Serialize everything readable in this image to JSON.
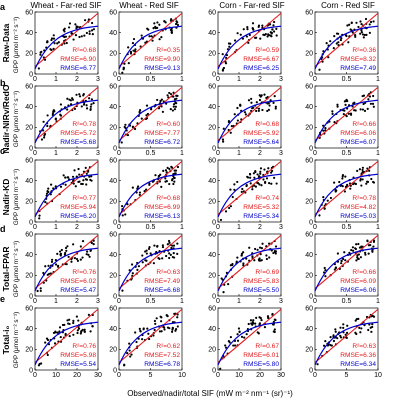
{
  "figure": {
    "xlabel": "Observed/nadir/total SIF (mW m⁻² nm⁻¹ (sr)⁻¹)",
    "ylabel": "GPP (μmol m⁻² s⁻¹)"
  },
  "colors": {
    "red_fit": "#e41a1c",
    "blue_fit": "#0000cc",
    "points": "#000000"
  },
  "columns": [
    "Wheat - Far-red SIF",
    "Wheat - Red SIF",
    "Corn - Far-red SIF",
    "Corn - Red SIF"
  ],
  "rows": [
    {
      "letter": "a",
      "label": "Raw-Data"
    },
    {
      "letter": "b",
      "label": "Nadir-NIRv/RedO"
    },
    {
      "letter": "c",
      "label": "Nadir-KD"
    },
    {
      "letter": "d",
      "label": "Total-FPAR"
    },
    {
      "letter": "e",
      "label": "Total-i₀"
    }
  ],
  "stat_labels": {
    "r2": "R²=",
    "rmse": "RMSE="
  },
  "chart_data": [
    {
      "type": "scatter",
      "row": 0,
      "col": 0,
      "xlim": [
        0,
        3
      ],
      "xticks": [
        "0",
        "1",
        "2",
        "3"
      ],
      "ylim": [
        0,
        60
      ],
      "yticks": [
        "0",
        "20",
        "40",
        "60"
      ],
      "r2": "0.68",
      "rmse_red": "6.90",
      "rmse_blue": "6.77"
    },
    {
      "type": "scatter",
      "row": 0,
      "col": 1,
      "xlim": [
        0,
        1
      ],
      "xticks": [
        "0",
        "0.5",
        "1"
      ],
      "ylim": [
        0,
        60
      ],
      "yticks": [
        "0",
        "20",
        "40",
        "60"
      ],
      "r2": "0.35",
      "rmse_red": "9.90",
      "rmse_blue": "9.13"
    },
    {
      "type": "scatter",
      "row": 0,
      "col": 2,
      "xlim": [
        0,
        3
      ],
      "xticks": [
        "0",
        "1",
        "2",
        "3"
      ],
      "ylim": [
        0,
        60
      ],
      "yticks": [
        "0",
        "20",
        "40",
        "60"
      ],
      "r2": "0.59",
      "rmse_red": "6.67",
      "rmse_blue": "6.25"
    },
    {
      "type": "scatter",
      "row": 0,
      "col": 3,
      "xlim": [
        0,
        1
      ],
      "xticks": [
        "0",
        "0.5",
        "1"
      ],
      "ylim": [
        0,
        60
      ],
      "yticks": [
        "0",
        "20",
        "40",
        "60"
      ],
      "r2": "0.36",
      "rmse_red": "8.32",
      "rmse_blue": "7.49"
    },
    {
      "type": "scatter",
      "row": 1,
      "col": 0,
      "xlim": [
        0,
        3
      ],
      "xticks": [
        "0",
        "1",
        "2",
        "3"
      ],
      "ylim": [
        0,
        60
      ],
      "yticks": [
        "0",
        "20",
        "40",
        "60"
      ],
      "r2": "0.78",
      "rmse_red": "5.72",
      "rmse_blue": "5.68"
    },
    {
      "type": "scatter",
      "row": 1,
      "col": 1,
      "xlim": [
        0,
        1
      ],
      "xticks": [
        "0",
        "0.5",
        "1"
      ],
      "ylim": [
        0,
        60
      ],
      "yticks": [
        "0",
        "20",
        "40",
        "60"
      ],
      "r2": "0.60",
      "rmse_red": "7.77",
      "rmse_blue": "6.72"
    },
    {
      "type": "scatter",
      "row": 1,
      "col": 2,
      "xlim": [
        0,
        3
      ],
      "xticks": [
        "0",
        "1",
        "2",
        "3"
      ],
      "ylim": [
        0,
        60
      ],
      "yticks": [
        "0",
        "20",
        "40",
        "60"
      ],
      "r2": "0.68",
      "rmse_red": "5.92",
      "rmse_blue": "5.64"
    },
    {
      "type": "scatter",
      "row": 1,
      "col": 3,
      "xlim": [
        0,
        1
      ],
      "xticks": [
        "0",
        "0.5",
        "1"
      ],
      "ylim": [
        0,
        60
      ],
      "yticks": [
        "0",
        "20",
        "40",
        "60"
      ],
      "r2": "0.66",
      "rmse_red": "6.06",
      "rmse_blue": "6.07"
    },
    {
      "type": "scatter",
      "row": 2,
      "col": 0,
      "xlim": [
        0,
        3
      ],
      "xticks": [
        "0",
        "1",
        "2",
        "3"
      ],
      "ylim": [
        0,
        60
      ],
      "yticks": [
        "0",
        "20",
        "40",
        "60"
      ],
      "r2": "0.77",
      "rmse_red": "5.94",
      "rmse_blue": "6.20"
    },
    {
      "type": "scatter",
      "row": 2,
      "col": 1,
      "xlim": [
        0,
        1
      ],
      "xticks": [
        "0",
        "0.5",
        "1"
      ],
      "ylim": [
        0,
        60
      ],
      "yticks": [
        "0",
        "20",
        "40",
        "60"
      ],
      "r2": "0.68",
      "rmse_red": "6.99",
      "rmse_blue": "6.13"
    },
    {
      "type": "scatter",
      "row": 2,
      "col": 2,
      "xlim": [
        0,
        3
      ],
      "xticks": [
        "0",
        "1",
        "2",
        "3"
      ],
      "ylim": [
        0,
        60
      ],
      "yticks": [
        "0",
        "20",
        "40",
        "60"
      ],
      "r2": "0.74",
      "rmse_red": "5.32",
      "rmse_blue": "5.34"
    },
    {
      "type": "scatter",
      "row": 2,
      "col": 3,
      "xlim": [
        0,
        1
      ],
      "xticks": [
        "0",
        "0.5",
        "1"
      ],
      "ylim": [
        0,
        60
      ],
      "yticks": [
        "0",
        "20",
        "40",
        "60"
      ],
      "r2": "0.78",
      "rmse_red": "4.82",
      "rmse_blue": "5.03"
    },
    {
      "type": "scatter",
      "row": 3,
      "col": 0,
      "xlim": [
        0,
        3
      ],
      "xticks": [
        "0",
        "1",
        "2",
        "3"
      ],
      "ylim": [
        0,
        60
      ],
      "yticks": [
        "0",
        "20",
        "40",
        "60"
      ],
      "r2": "0.76",
      "rmse_red": "6.02",
      "rmse_blue": "5.47"
    },
    {
      "type": "scatter",
      "row": 3,
      "col": 1,
      "xlim": [
        0,
        1
      ],
      "xticks": [
        "0",
        "0.5",
        "1"
      ],
      "ylim": [
        0,
        60
      ],
      "yticks": [
        "0",
        "20",
        "40",
        "60"
      ],
      "r2": "0.63",
      "rmse_red": "7.49",
      "rmse_blue": "6.68"
    },
    {
      "type": "scatter",
      "row": 3,
      "col": 2,
      "xlim": [
        0,
        3
      ],
      "xticks": [
        "0",
        "1",
        "2",
        "3"
      ],
      "ylim": [
        0,
        60
      ],
      "yticks": [
        "0",
        "20",
        "40",
        "60"
      ],
      "r2": "0.69",
      "rmse_red": "5.83",
      "rmse_blue": "5.50"
    },
    {
      "type": "scatter",
      "row": 3,
      "col": 3,
      "xlim": [
        0,
        1
      ],
      "xticks": [
        "0",
        "0.5",
        "1"
      ],
      "ylim": [
        0,
        60
      ],
      "yticks": [
        "0",
        "20",
        "40",
        "60"
      ],
      "r2": "0.66",
      "rmse_red": "6.09",
      "rmse_blue": "6.06"
    },
    {
      "type": "scatter",
      "row": 4,
      "col": 0,
      "xlim": [
        0,
        30
      ],
      "xticks": [
        "0",
        "10",
        "20",
        "30"
      ],
      "ylim": [
        0,
        60
      ],
      "yticks": [
        "0",
        "20",
        "40",
        "60"
      ],
      "r2": "0.76",
      "rmse_red": "5.98",
      "rmse_blue": "5.54"
    },
    {
      "type": "scatter",
      "row": 4,
      "col": 1,
      "xlim": [
        0,
        10
      ],
      "xticks": [
        "0",
        "5",
        "10"
      ],
      "ylim": [
        0,
        60
      ],
      "yticks": [
        "0",
        "20",
        "40",
        "60"
      ],
      "r2": "0.62",
      "rmse_red": "7.52",
      "rmse_blue": "6.78"
    },
    {
      "type": "scatter",
      "row": 4,
      "col": 2,
      "xlim": [
        0,
        30
      ],
      "xticks": [
        "0",
        "10",
        "20",
        "30"
      ],
      "ylim": [
        0,
        60
      ],
      "yticks": [
        "0",
        "20",
        "40",
        "60"
      ],
      "r2": "0.67",
      "rmse_red": "6.01",
      "rmse_blue": "5.80"
    },
    {
      "type": "scatter",
      "row": 4,
      "col": 3,
      "xlim": [
        0,
        10
      ],
      "xticks": [
        "0",
        "5",
        "10"
      ],
      "ylim": [
        0,
        60
      ],
      "yticks": [
        "0",
        "20",
        "40",
        "60"
      ],
      "r2": "0.63",
      "rmse_red": "6.36",
      "rmse_blue": "6.34"
    }
  ]
}
